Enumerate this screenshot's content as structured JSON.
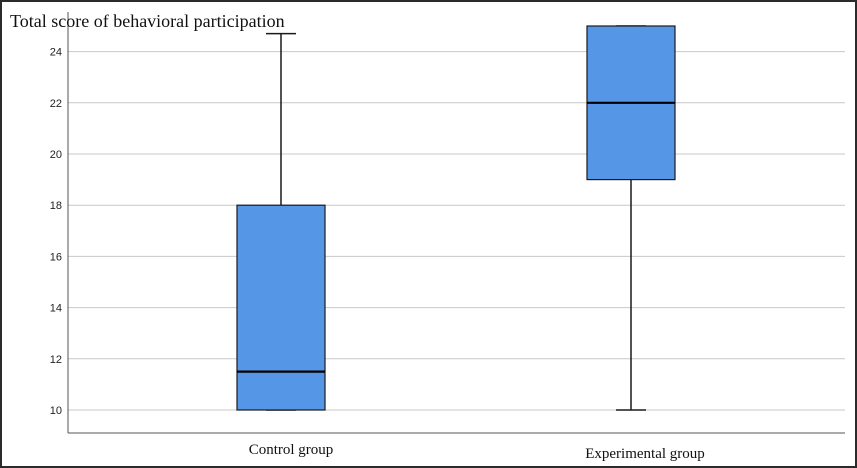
{
  "chart_data": {
    "type": "boxplot",
    "title": "Total score of behavioral participation",
    "xlabel": "",
    "ylabel": "",
    "categories": [
      "Control group",
      "Experimental group"
    ],
    "series": [
      {
        "category": "Control group",
        "min": 10,
        "q1": 10,
        "median": 11.5,
        "q3": 18,
        "max": 24.7
      },
      {
        "category": "Experimental group",
        "min": 10,
        "q1": 19,
        "median": 22,
        "q3": 25,
        "max": 25
      }
    ],
    "yticks": [
      10,
      12,
      14,
      16,
      18,
      20,
      22,
      24
    ],
    "ylim": [
      9.2,
      25.4
    ],
    "grid": true,
    "colors": {
      "box_fill": "#5596e6",
      "box_stroke": "#1a1a1a",
      "grid": "#c8c8c8",
      "axis": "#555555"
    }
  }
}
